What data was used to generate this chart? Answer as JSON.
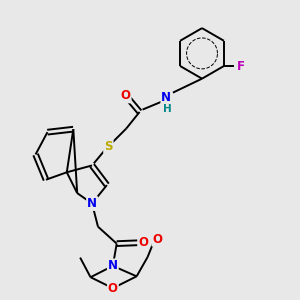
{
  "bg_color": "#e8e8e8",
  "bond_color": "#000000",
  "bond_width": 1.4,
  "atom_colors": {
    "C": "#000000",
    "N": "#0000ee",
    "O": "#ee0000",
    "S": "#bbaa00",
    "F": "#bb00bb",
    "H": "#008888"
  },
  "font_size": 8.5,
  "fig_size": [
    3.0,
    3.0
  ],
  "dpi": 100
}
